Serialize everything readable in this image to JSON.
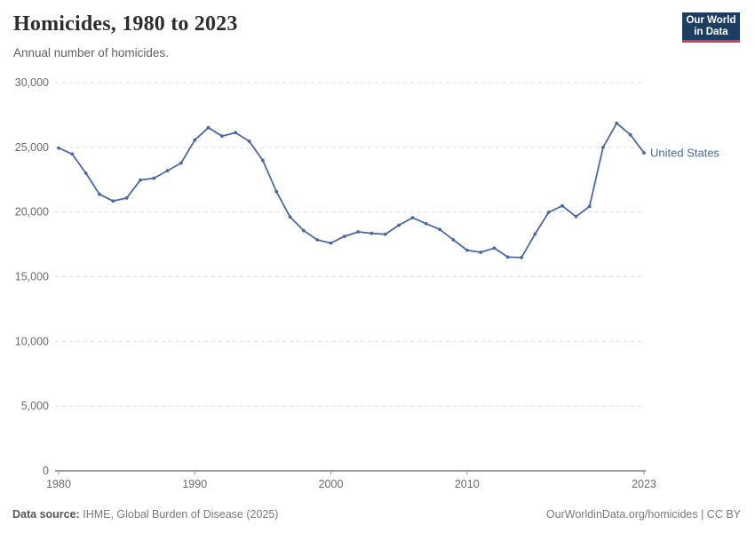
{
  "header": {
    "title": "Homicides, 1980 to 2023",
    "subtitle": "Annual number of homicides.",
    "logo": {
      "line1": "Our World",
      "line2": "in Data"
    }
  },
  "chart_data": {
    "type": "line",
    "title": "Homicides, 1980 to 2023",
    "xlabel": "",
    "ylabel": "",
    "xlim": [
      1980,
      2023
    ],
    "ylim": [
      0,
      30000
    ],
    "grid": "horizontal-dashed",
    "legend_position": "right-of-last-point",
    "x_ticks": [
      1980,
      1990,
      2000,
      2010,
      2023
    ],
    "y_ticks": [
      0,
      5000,
      10000,
      15000,
      20000,
      25000,
      30000
    ],
    "y_tick_labels": [
      "0",
      "5,000",
      "10,000",
      "15,000",
      "20,000",
      "25,000",
      "30,000"
    ],
    "series": [
      {
        "name": "United States",
        "color": "#4a69a2",
        "x": [
          1980,
          1981,
          1982,
          1983,
          1984,
          1985,
          1986,
          1987,
          1988,
          1989,
          1990,
          1991,
          1992,
          1993,
          1994,
          1995,
          1996,
          1997,
          1998,
          1999,
          2000,
          2001,
          2002,
          2003,
          2004,
          2005,
          2006,
          2007,
          2008,
          2009,
          2010,
          2011,
          2012,
          2013,
          2014,
          2015,
          2016,
          2017,
          2018,
          2019,
          2020,
          2021,
          2022,
          2023
        ],
        "values": [
          24950,
          24480,
          23000,
          21370,
          20850,
          21080,
          22470,
          22610,
          23200,
          23790,
          25560,
          26520,
          25870,
          26130,
          25470,
          23980,
          21580,
          19630,
          18560,
          17850,
          17600,
          18120,
          18470,
          18350,
          18280,
          18980,
          19560,
          19100,
          18650,
          17850,
          17050,
          16890,
          17210,
          16520,
          16480,
          18300,
          19980,
          20480,
          19650,
          20430,
          25000,
          26860,
          25970,
          24580
        ]
      }
    ]
  },
  "footer": {
    "source_label": "Data source:",
    "source_text": "IHME, Global Burden of Disease (2025)",
    "right_text": "OurWorldinData.org/homicides | CC BY"
  },
  "colors": {
    "line": "#4a69a2",
    "gridline": "#dcdcdc",
    "axis": "#383838",
    "tick_text": "#6b6b6b",
    "logo_bg": "#1d3d63",
    "logo_accent": "#d73c4c"
  }
}
